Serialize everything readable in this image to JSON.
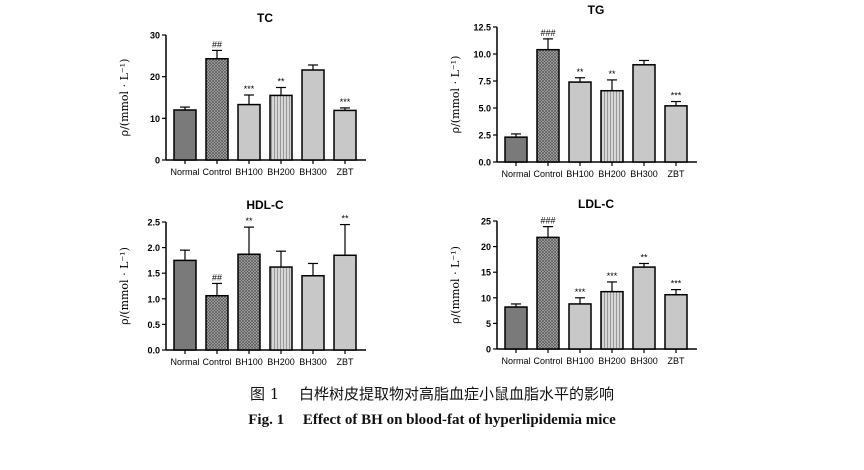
{
  "chart_data": [
    {
      "type": "bar",
      "title": "TC",
      "ylabel": "ρ/(mmol · L⁻¹)",
      "ylim": [
        0,
        30
      ],
      "yticks": [
        "0",
        "10",
        "20",
        "30"
      ],
      "categories": [
        "Normal",
        "Control",
        "BH100",
        "BH200",
        "BH300",
        "ZBT"
      ],
      "values": [
        12.0,
        24.3,
        13.3,
        15.5,
        21.6,
        11.9
      ],
      "errors": [
        0.7,
        2.0,
        2.3,
        1.9,
        1.2,
        0.6
      ],
      "annotations": [
        "",
        "##",
        "***",
        "**",
        "",
        "***"
      ],
      "patterns": [
        "dark",
        "crosshatch",
        "light",
        "vlines",
        "light",
        "light"
      ]
    },
    {
      "type": "bar",
      "title": "TG",
      "ylabel": "ρ/(mmol · L⁻¹)",
      "ylim": [
        0,
        12.5
      ],
      "yticks": [
        "0.0",
        "2.5",
        "5.0",
        "7.5",
        "10.0",
        "12.5"
      ],
      "categories": [
        "Normal",
        "Control",
        "BH100",
        "BH200",
        "BH300",
        "ZBT"
      ],
      "values": [
        2.3,
        10.4,
        7.4,
        6.6,
        9.0,
        5.2
      ],
      "errors": [
        0.3,
        1.0,
        0.4,
        1.0,
        0.4,
        0.4
      ],
      "annotations": [
        "",
        "###",
        "**",
        "**",
        "",
        "***"
      ],
      "patterns": [
        "dark",
        "crosshatch",
        "light",
        "vlines",
        "light",
        "light"
      ]
    },
    {
      "type": "bar",
      "title": "HDL-C",
      "ylabel": "ρ/(mmol · L⁻¹)",
      "ylim": [
        0,
        2.5
      ],
      "yticks": [
        "0.0",
        "0.5",
        "1.0",
        "1.5",
        "2.0",
        "2.5"
      ],
      "categories": [
        "Normal",
        "Control",
        "BH100",
        "BH200",
        "BH300",
        "ZBT"
      ],
      "values": [
        1.75,
        1.06,
        1.87,
        1.62,
        1.45,
        1.85
      ],
      "errors": [
        0.2,
        0.24,
        0.53,
        0.31,
        0.24,
        0.6
      ],
      "annotations": [
        "",
        "##",
        "**",
        "",
        "",
        "**"
      ],
      "patterns": [
        "dark",
        "crosshatch",
        "crosshatch",
        "vlines",
        "light",
        "light"
      ]
    },
    {
      "type": "bar",
      "title": "LDL-C",
      "ylabel": "ρ/(mmol · L⁻¹)",
      "ylim": [
        0,
        25
      ],
      "yticks": [
        "0",
        "5",
        "10",
        "15",
        "20",
        "25"
      ],
      "categories": [
        "Normal",
        "Control",
        "BH100",
        "BH200",
        "BH300",
        "ZBT"
      ],
      "values": [
        8.2,
        21.8,
        8.8,
        11.2,
        16.0,
        10.6
      ],
      "errors": [
        0.6,
        2.1,
        1.2,
        1.9,
        0.7,
        1.0
      ],
      "annotations": [
        "",
        "###",
        "***",
        "***",
        "**",
        "***"
      ],
      "patterns": [
        "dark",
        "crosshatch",
        "light",
        "vlines",
        "light",
        "light"
      ]
    }
  ],
  "caption": {
    "cn": "图 1　 白桦树皮提取物对高脂血症小鼠血脂水平的影响",
    "en": "Fig. 1　 Effect of BH on blood-fat of hyperlipidemia mice"
  },
  "colors": {
    "dark": "#7a7a7a",
    "light": "#c8c8c8",
    "crosshatch": "#9a9a9a",
    "vlines": "#d0d0d0"
  }
}
